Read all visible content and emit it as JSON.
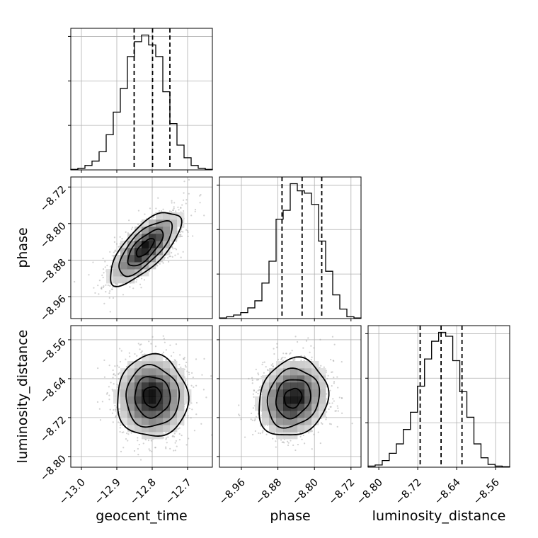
{
  "chart_data": {
    "type": "corner",
    "parameters": [
      "geocent_time",
      "phase",
      "luminosity_distance"
    ],
    "axis_labels": {
      "geocent_time": "geocent_time",
      "phase": "phase",
      "luminosity_distance": "luminosity_distance"
    },
    "ranges": {
      "geocent_time": [
        -13.03,
        -12.63
      ],
      "phase": [
        -9.008,
        -8.698
      ],
      "luminosity_distance": [
        -8.822,
        -8.531
      ]
    },
    "ticks": {
      "geocent_time": [
        -13.0,
        -12.9,
        -12.8,
        -12.7
      ],
      "phase": [
        -8.96,
        -8.88,
        -8.8,
        -8.72
      ],
      "luminosity_distance": [
        -8.8,
        -8.72,
        -8.64,
        -8.56
      ]
    },
    "tick_labels": {
      "geocent_time": [
        "−13.0",
        "−12.9",
        "−12.8",
        "−12.7"
      ],
      "phase": [
        "−8.96",
        "−8.88",
        "−8.80",
        "−8.72"
      ],
      "luminosity_distance": [
        "−8.80",
        "−8.72",
        "−8.64",
        "−8.56"
      ]
    },
    "grid": true,
    "marginals": {
      "geocent_time": {
        "bin_edges": [
          -13.03,
          -13.01,
          -12.99,
          -12.97,
          -12.95,
          -12.93,
          -12.91,
          -12.89,
          -12.87,
          -12.85,
          -12.83,
          -12.81,
          -12.79,
          -12.77,
          -12.75,
          -12.73,
          -12.71,
          -12.69,
          -12.67,
          -12.65,
          -12.63
        ],
        "counts": [
          0.1,
          0.3,
          0.8,
          1.6,
          3.3,
          6.4,
          10.5,
          14.8,
          20.6,
          23.3,
          24.5,
          22.7,
          20.6,
          14.2,
          8.4,
          4.5,
          2.2,
          0.8,
          0.3,
          0.1
        ],
        "quantiles": [
          -12.851,
          -12.799,
          -12.75
        ]
      },
      "phase": {
        "bin_edges": [
          -9.008,
          -8.9925,
          -8.977,
          -8.9615,
          -8.946,
          -8.9305,
          -8.915,
          -8.8995,
          -8.884,
          -8.8685,
          -8.853,
          -8.8375,
          -8.822,
          -8.8065,
          -8.791,
          -8.7755,
          -8.76,
          -8.7445,
          -8.729,
          -8.7135,
          -8.698
        ],
        "counts": [
          0.1,
          0.3,
          0.6,
          1.0,
          1.8,
          3.0,
          6.0,
          9.7,
          16.8,
          18.3,
          22.8,
          21.6,
          21.2,
          19.3,
          13.1,
          8.0,
          4.0,
          1.6,
          0.3,
          0.1
        ],
        "quantiles": [
          -8.871,
          -8.827,
          -8.784
        ]
      },
      "luminosity_distance": {
        "bin_edges": [
          -8.822,
          -8.8075,
          -8.793,
          -8.7785,
          -8.764,
          -8.7495,
          -8.735,
          -8.7205,
          -8.706,
          -8.6915,
          -8.677,
          -8.6625,
          -8.648,
          -8.6335,
          -8.619,
          -8.6045,
          -8.59,
          -8.5755,
          -8.561,
          -8.5465,
          -8.531
        ],
        "counts": [
          0.2,
          0.4,
          1.2,
          2.5,
          4.2,
          6.8,
          9.9,
          14.6,
          19.5,
          22.7,
          24.3,
          23.6,
          19.2,
          13.6,
          9.0,
          4.2,
          1.7,
          0.5,
          0.2,
          0.1
        ],
        "quantiles": [
          -8.715,
          -8.672,
          -8.629
        ]
      }
    },
    "joint": [
      {
        "x": "geocent_time",
        "y": "phase",
        "mean": [
          -12.82,
          -8.853
        ],
        "std": [
          0.05,
          0.04
        ],
        "rho": 0.72
      },
      {
        "x": "geocent_time",
        "y": "luminosity_distance",
        "mean": [
          -12.8,
          -8.677
        ],
        "std": [
          0.05,
          0.042
        ],
        "rho": 0.0
      },
      {
        "x": "phase",
        "y": "luminosity_distance",
        "mean": [
          -8.847,
          -8.68
        ],
        "std": [
          0.038,
          0.04
        ],
        "rho": 0.15
      }
    ],
    "contour_levels_sigma": [
      0.5,
      1.0,
      1.5,
      2.0
    ]
  }
}
